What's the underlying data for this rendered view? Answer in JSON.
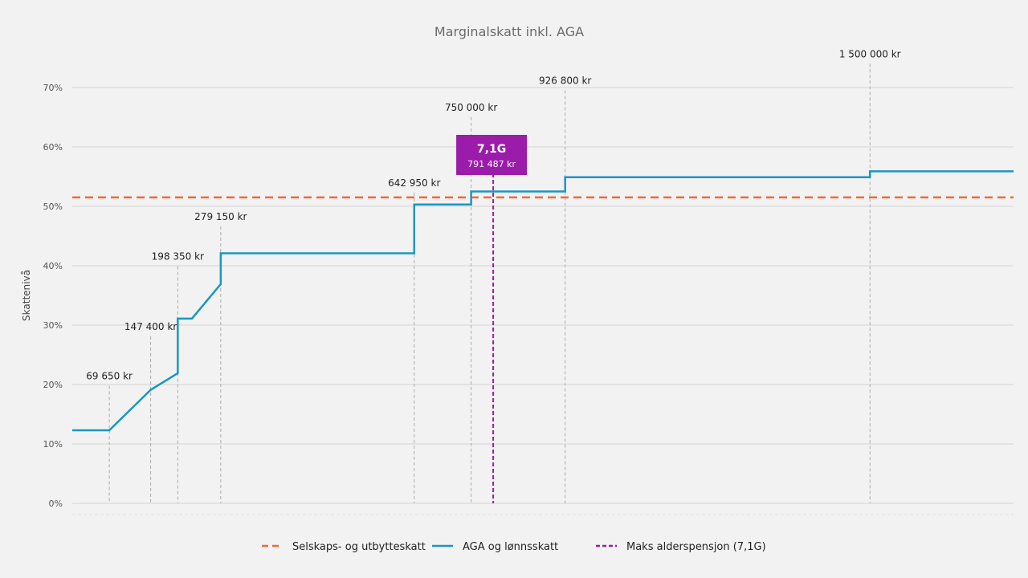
{
  "chart_data": {
    "type": "line",
    "title": "Marginalskatt inkl. AGA",
    "ylabel": "Skattenivå",
    "xlabel": "",
    "xlim": [
      0,
      1770000
    ],
    "ylim": [
      0,
      70
    ],
    "yticks": [
      "0%",
      "10%",
      "20%",
      "30%",
      "40%",
      "50%",
      "60%",
      "70%"
    ],
    "grid": true,
    "legend_position": "bottom",
    "colors": {
      "series_aga": "#1b95c6",
      "series_selskap": "#f06a35",
      "marker": "#9b1cab",
      "guide": "#aaaaaa"
    },
    "series": [
      {
        "name": "Selskaps- og utbytteskatt",
        "style": "dashed",
        "x": [
          0,
          1770000
        ],
        "y": [
          51.5,
          51.5
        ]
      },
      {
        "name": "AGA og lønnsskatt",
        "style": "solid",
        "x": [
          0,
          69650,
          147400,
          198350,
          198350,
          225000,
          279150,
          279150,
          642950,
          642950,
          750000,
          750000,
          926800,
          926800,
          1500000,
          1500000,
          1770000
        ],
        "y": [
          12.3,
          12.3,
          19.1,
          21.9,
          31.1,
          31.1,
          36.9,
          42.1,
          42.1,
          50.3,
          50.3,
          52.5,
          52.5,
          54.9,
          54.9,
          55.9,
          55.9
        ]
      }
    ],
    "thresholds": [
      {
        "x": 69650,
        "label": "69 650 kr",
        "label_y": 20.9
      },
      {
        "x": 147400,
        "label": "147 400 kr",
        "label_y": 29.2
      },
      {
        "x": 198350,
        "label": "198 350 kr",
        "label_y": 41.0
      },
      {
        "x": 279150,
        "label": "279 150 kr",
        "label_y": 47.7
      },
      {
        "x": 642950,
        "label": "642 950 kr",
        "label_y": 53.4
      },
      {
        "x": 750000,
        "label": "750 000 kr",
        "label_y": 66.1
      },
      {
        "x": 926800,
        "label": "926 800 kr",
        "label_y": 70.6
      },
      {
        "x": 1500000,
        "label": "1 500 000 kr",
        "label_y": 75.1
      }
    ],
    "marker": {
      "name": "Maks alderspensjon (7,1G)",
      "x": 791487,
      "callout_title": "7,1G",
      "callout_value": "791 487 kr"
    }
  }
}
